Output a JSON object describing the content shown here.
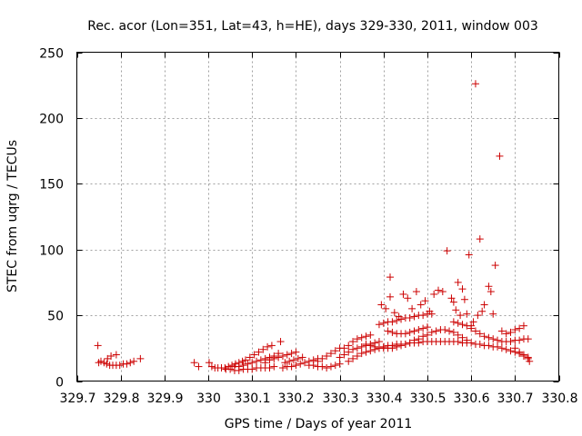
{
  "chart_data": {
    "type": "scatter",
    "title": "Rec. acor (Lon=351, Lat=43, h=HE), days 329-330, 2011, window 003",
    "xlabel": "GPS time / Days of year 2011",
    "ylabel": "STEC from uqrg / TECUs",
    "xlim": [
      329.7,
      330.8
    ],
    "ylim": [
      0,
      250
    ],
    "x_ticks": [
      329.7,
      329.8,
      329.9,
      330.0,
      330.1,
      330.2,
      330.3,
      330.4,
      330.5,
      330.6,
      330.7,
      330.8
    ],
    "x_tick_labels": [
      "329.7",
      "329.8",
      "329.9",
      "330",
      "330.1",
      "330.2",
      "330.3",
      "330.4",
      "330.5",
      "330.6",
      "330.7",
      "330.8"
    ],
    "y_ticks": [
      0,
      50,
      100,
      150,
      200,
      250
    ],
    "y_tick_labels": [
      "0",
      "50",
      "100",
      "150",
      "200",
      "250"
    ],
    "grid": true,
    "marker": "+",
    "color": "#cc0000",
    "series": [
      {
        "points": [
          [
            329.748,
            27
          ],
          [
            329.75,
            14
          ],
          [
            329.755,
            15
          ],
          [
            329.762,
            14
          ],
          [
            329.768,
            13
          ],
          [
            329.775,
            12
          ],
          [
            329.782,
            12
          ],
          [
            329.79,
            12
          ],
          [
            329.798,
            12
          ],
          [
            329.806,
            13
          ],
          [
            329.814,
            13
          ],
          [
            329.822,
            14
          ],
          [
            329.83,
            15
          ],
          [
            329.845,
            17
          ],
          [
            329.77,
            17
          ],
          [
            329.778,
            19
          ],
          [
            329.79,
            20
          ],
          [
            329.968,
            14
          ],
          [
            329.978,
            11
          ],
          [
            330.002,
            14
          ],
          [
            330.008,
            11
          ],
          [
            330.015,
            10
          ],
          [
            330.022,
            10
          ],
          [
            330.03,
            10
          ],
          [
            330.038,
            10
          ],
          [
            330.046,
            11
          ],
          [
            330.054,
            12
          ],
          [
            330.062,
            13
          ],
          [
            330.07,
            14
          ],
          [
            330.078,
            15
          ],
          [
            330.04,
            9
          ],
          [
            330.05,
            9
          ],
          [
            330.06,
            8
          ],
          [
            330.07,
            8
          ],
          [
            330.08,
            9
          ],
          [
            330.09,
            9
          ],
          [
            330.1,
            9
          ],
          [
            330.11,
            10
          ],
          [
            330.12,
            10
          ],
          [
            330.13,
            10
          ],
          [
            330.14,
            10
          ],
          [
            330.15,
            11
          ],
          [
            330.06,
            11
          ],
          [
            330.07,
            11
          ],
          [
            330.08,
            12
          ],
          [
            330.09,
            13
          ],
          [
            330.1,
            14
          ],
          [
            330.11,
            15
          ],
          [
            330.12,
            16
          ],
          [
            330.13,
            17
          ],
          [
            330.14,
            18
          ],
          [
            330.15,
            19
          ],
          [
            330.16,
            21
          ],
          [
            330.085,
            16
          ],
          [
            330.095,
            18
          ],
          [
            330.105,
            20
          ],
          [
            330.115,
            22
          ],
          [
            330.125,
            24
          ],
          [
            330.135,
            26
          ],
          [
            330.145,
            27
          ],
          [
            330.165,
            30
          ],
          [
            330.13,
            14
          ],
          [
            330.14,
            16
          ],
          [
            330.15,
            17
          ],
          [
            330.16,
            18
          ],
          [
            330.17,
            19
          ],
          [
            330.18,
            20
          ],
          [
            330.19,
            21
          ],
          [
            330.2,
            22
          ],
          [
            330.17,
            10
          ],
          [
            330.18,
            11
          ],
          [
            330.19,
            11
          ],
          [
            330.2,
            12
          ],
          [
            330.21,
            13
          ],
          [
            330.22,
            14
          ],
          [
            330.23,
            15
          ],
          [
            330.24,
            16
          ],
          [
            330.25,
            17
          ],
          [
            330.175,
            14
          ],
          [
            330.185,
            15
          ],
          [
            330.195,
            16
          ],
          [
            330.205,
            17
          ],
          [
            330.215,
            18
          ],
          [
            330.23,
            12
          ],
          [
            330.24,
            12
          ],
          [
            330.25,
            11
          ],
          [
            330.26,
            11
          ],
          [
            330.27,
            10
          ],
          [
            330.28,
            11
          ],
          [
            330.29,
            12
          ],
          [
            330.3,
            13
          ],
          [
            330.25,
            15
          ],
          [
            330.26,
            17
          ],
          [
            330.27,
            19
          ],
          [
            330.28,
            21
          ],
          [
            330.29,
            23
          ],
          [
            330.3,
            25
          ],
          [
            330.3,
            18
          ],
          [
            330.31,
            20
          ],
          [
            330.32,
            22
          ],
          [
            330.33,
            24
          ],
          [
            330.34,
            25
          ],
          [
            330.35,
            26
          ],
          [
            330.36,
            27
          ],
          [
            330.37,
            28
          ],
          [
            330.38,
            29
          ],
          [
            330.39,
            30
          ],
          [
            330.31,
            25
          ],
          [
            330.32,
            27
          ],
          [
            330.33,
            30
          ],
          [
            330.34,
            32
          ],
          [
            330.35,
            33
          ],
          [
            330.36,
            34
          ],
          [
            330.37,
            35
          ],
          [
            330.32,
            15
          ],
          [
            330.33,
            17
          ],
          [
            330.34,
            19
          ],
          [
            330.35,
            21
          ],
          [
            330.36,
            22
          ],
          [
            330.37,
            23
          ],
          [
            330.38,
            24
          ],
          [
            330.39,
            25
          ],
          [
            330.4,
            26
          ],
          [
            330.41,
            27
          ],
          [
            330.42,
            27
          ],
          [
            330.43,
            28
          ],
          [
            330.44,
            28
          ],
          [
            330.45,
            28
          ],
          [
            330.46,
            29
          ],
          [
            330.47,
            29
          ],
          [
            330.48,
            29
          ],
          [
            330.49,
            30
          ],
          [
            330.5,
            30
          ],
          [
            330.51,
            30
          ],
          [
            330.52,
            30
          ],
          [
            330.53,
            30
          ],
          [
            330.54,
            30
          ],
          [
            330.55,
            30
          ],
          [
            330.56,
            30
          ],
          [
            330.57,
            30
          ],
          [
            330.58,
            29
          ],
          [
            330.59,
            29
          ],
          [
            330.6,
            29
          ],
          [
            330.61,
            28
          ],
          [
            330.62,
            28
          ],
          [
            330.63,
            27
          ],
          [
            330.64,
            27
          ],
          [
            330.65,
            26
          ],
          [
            330.66,
            26
          ],
          [
            330.67,
            25
          ],
          [
            330.68,
            24
          ],
          [
            330.69,
            23
          ],
          [
            330.7,
            22
          ],
          [
            330.71,
            21
          ],
          [
            330.72,
            19
          ],
          [
            330.73,
            17
          ],
          [
            330.36,
            28
          ],
          [
            330.37,
            27
          ],
          [
            330.38,
            26
          ],
          [
            330.39,
            25
          ],
          [
            330.4,
            25
          ],
          [
            330.41,
            25
          ],
          [
            330.42,
            25
          ],
          [
            330.43,
            26
          ],
          [
            330.44,
            27
          ],
          [
            330.45,
            28
          ],
          [
            330.46,
            29
          ],
          [
            330.47,
            31
          ],
          [
            330.48,
            32
          ],
          [
            330.49,
            34
          ],
          [
            330.5,
            35
          ],
          [
            330.51,
            37
          ],
          [
            330.52,
            38
          ],
          [
            330.53,
            39
          ],
          [
            330.54,
            39
          ],
          [
            330.55,
            38
          ],
          [
            330.56,
            37
          ],
          [
            330.57,
            35
          ],
          [
            330.58,
            33
          ],
          [
            330.59,
            31
          ],
          [
            330.39,
            43
          ],
          [
            330.4,
            44
          ],
          [
            330.41,
            45
          ],
          [
            330.42,
            45
          ],
          [
            330.43,
            46
          ],
          [
            330.44,
            47
          ],
          [
            330.45,
            48
          ],
          [
            330.46,
            48
          ],
          [
            330.47,
            49
          ],
          [
            330.48,
            50
          ],
          [
            330.49,
            50
          ],
          [
            330.5,
            51
          ],
          [
            330.51,
            51
          ],
          [
            330.395,
            58
          ],
          [
            330.405,
            55
          ],
          [
            330.415,
            64
          ],
          [
            330.425,
            52
          ],
          [
            330.435,
            49
          ],
          [
            330.445,
            66
          ],
          [
            330.455,
            63
          ],
          [
            330.465,
            55
          ],
          [
            330.475,
            68
          ],
          [
            330.485,
            58
          ],
          [
            330.495,
            61
          ],
          [
            330.505,
            53
          ],
          [
            330.515,
            66
          ],
          [
            330.525,
            69
          ],
          [
            330.535,
            68
          ],
          [
            330.41,
            38
          ],
          [
            330.42,
            37
          ],
          [
            330.43,
            36
          ],
          [
            330.44,
            36
          ],
          [
            330.45,
            36
          ],
          [
            330.46,
            37
          ],
          [
            330.47,
            38
          ],
          [
            330.48,
            39
          ],
          [
            330.49,
            40
          ],
          [
            330.5,
            41
          ],
          [
            330.415,
            79
          ],
          [
            330.545,
            99
          ],
          [
            330.555,
            63
          ],
          [
            330.56,
            60
          ],
          [
            330.565,
            54
          ],
          [
            330.57,
            75
          ],
          [
            330.575,
            50
          ],
          [
            330.58,
            70
          ],
          [
            330.585,
            62
          ],
          [
            330.59,
            51
          ],
          [
            330.595,
            96
          ],
          [
            330.6,
            42
          ],
          [
            330.605,
            45
          ],
          [
            330.61,
            226
          ],
          [
            330.615,
            50
          ],
          [
            330.62,
            108
          ],
          [
            330.625,
            53
          ],
          [
            330.63,
            58
          ],
          [
            330.64,
            72
          ],
          [
            330.645,
            68
          ],
          [
            330.655,
            88
          ],
          [
            330.665,
            171
          ],
          [
            330.56,
            45
          ],
          [
            330.57,
            44
          ],
          [
            330.58,
            43
          ],
          [
            330.59,
            42
          ],
          [
            330.6,
            40
          ],
          [
            330.61,
            38
          ],
          [
            330.62,
            36
          ],
          [
            330.63,
            34
          ],
          [
            330.64,
            33
          ],
          [
            330.65,
            32
          ],
          [
            330.66,
            31
          ],
          [
            330.67,
            30
          ],
          [
            330.68,
            30
          ],
          [
            330.69,
            30
          ],
          [
            330.7,
            31
          ],
          [
            330.71,
            31
          ],
          [
            330.72,
            32
          ],
          [
            330.73,
            32
          ],
          [
            330.65,
            51
          ],
          [
            330.67,
            38
          ],
          [
            330.68,
            36
          ],
          [
            330.69,
            37
          ],
          [
            330.7,
            39
          ],
          [
            330.71,
            40
          ],
          [
            330.72,
            42
          ],
          [
            330.7,
            25
          ],
          [
            330.71,
            22
          ],
          [
            330.72,
            20
          ],
          [
            330.73,
            18
          ],
          [
            330.733,
            15
          ]
        ]
      }
    ]
  }
}
